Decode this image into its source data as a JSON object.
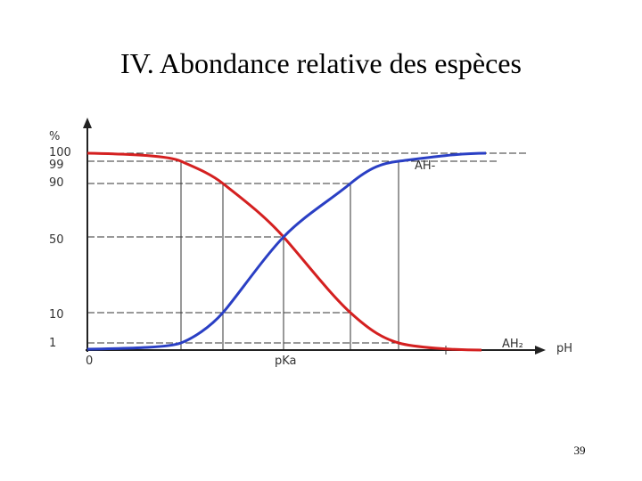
{
  "header": {
    "title": "IV. Abondance relative des espèces"
  },
  "y_axis": {
    "unit": "%",
    "labels": [
      "100",
      "99",
      "90",
      "50",
      "10",
      "1"
    ]
  },
  "x_axis": {
    "origin": "0",
    "middle": "pKa",
    "unit": "pH"
  },
  "curves": {
    "blue": "AH-",
    "red": "AH₂"
  },
  "footer": {
    "page": "39"
  }
}
